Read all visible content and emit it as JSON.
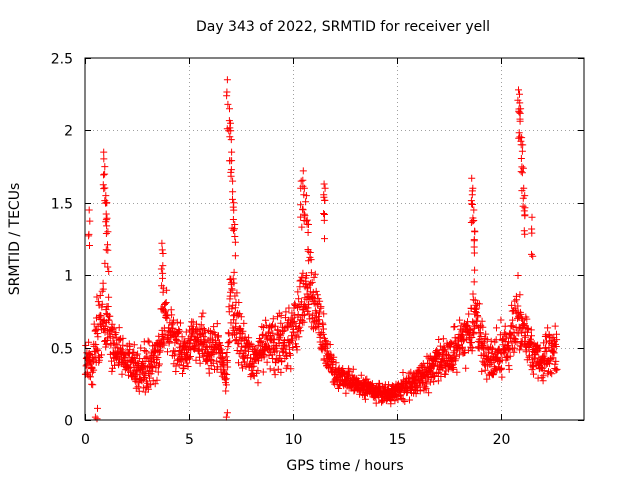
{
  "chart_data": {
    "type": "scatter",
    "title": "Day 343 of 2022, SRMTID for receiver yell",
    "xlabel": "GPS time / hours",
    "ylabel": "SRMTID / TECUs",
    "xlim": [
      0,
      24
    ],
    "ylim": [
      0,
      2.5
    ],
    "grid": true,
    "marker": "+",
    "marker_color": "#ff0000",
    "x_ticks": [
      0,
      5,
      10,
      15,
      20
    ],
    "x_tick_labels": [
      "0",
      "5",
      "10",
      "15",
      "20"
    ],
    "y_ticks": [
      0,
      0.5,
      1,
      1.5,
      2,
      2.5
    ],
    "y_tick_labels": [
      "0",
      "0.5",
      "1",
      "1.5",
      "2",
      "2.5"
    ],
    "envelope": {
      "x": [
        0.0,
        0.3,
        0.6,
        0.9,
        1.2,
        1.5,
        2.0,
        2.5,
        3.0,
        3.5,
        3.8,
        4.2,
        4.6,
        5.0,
        5.5,
        6.0,
        6.4,
        6.8,
        7.0,
        7.3,
        7.6,
        8.0,
        8.5,
        9.0,
        9.5,
        10.0,
        10.4,
        10.8,
        11.2,
        11.6,
        12.0,
        12.5,
        13.0,
        13.5,
        14.0,
        14.5,
        15.0,
        15.5,
        16.0,
        16.5,
        17.0,
        17.5,
        18.0,
        18.5,
        18.8,
        19.2,
        19.6,
        20.0,
        20.4,
        20.8,
        21.2,
        21.6,
        22.0,
        22.3,
        22.7
      ],
      "mid": [
        0.45,
        0.35,
        0.6,
        0.75,
        0.65,
        0.5,
        0.4,
        0.35,
        0.35,
        0.45,
        0.7,
        0.6,
        0.45,
        0.5,
        0.55,
        0.5,
        0.45,
        0.3,
        0.8,
        0.7,
        0.5,
        0.4,
        0.45,
        0.5,
        0.55,
        0.6,
        0.8,
        0.85,
        0.75,
        0.5,
        0.3,
        0.28,
        0.25,
        0.22,
        0.2,
        0.18,
        0.2,
        0.22,
        0.28,
        0.32,
        0.4,
        0.45,
        0.55,
        0.6,
        0.75,
        0.45,
        0.4,
        0.45,
        0.5,
        0.7,
        0.6,
        0.45,
        0.4,
        0.45,
        0.5
      ],
      "spread": [
        0.25,
        0.25,
        0.3,
        0.35,
        0.3,
        0.2,
        0.18,
        0.18,
        0.2,
        0.2,
        0.3,
        0.25,
        0.2,
        0.2,
        0.22,
        0.2,
        0.2,
        0.2,
        0.4,
        0.35,
        0.25,
        0.2,
        0.2,
        0.25,
        0.25,
        0.3,
        0.35,
        0.35,
        0.35,
        0.2,
        0.12,
        0.1,
        0.1,
        0.08,
        0.08,
        0.08,
        0.1,
        0.1,
        0.12,
        0.14,
        0.15,
        0.18,
        0.2,
        0.2,
        0.25,
        0.2,
        0.2,
        0.2,
        0.22,
        0.3,
        0.25,
        0.2,
        0.18,
        0.2,
        0.2
      ]
    },
    "spikes": [
      {
        "x": 0.2,
        "y": 1.45
      },
      {
        "x": 0.9,
        "y": 1.85
      },
      {
        "x": 0.95,
        "y": 1.75
      },
      {
        "x": 1.0,
        "y": 1.55
      },
      {
        "x": 1.05,
        "y": 1.5
      },
      {
        "x": 1.1,
        "y": 1.3
      },
      {
        "x": 3.7,
        "y": 1.22
      },
      {
        "x": 3.75,
        "y": 1.15
      },
      {
        "x": 6.85,
        "y": 2.35
      },
      {
        "x": 6.95,
        "y": 2.15
      },
      {
        "x": 7.0,
        "y": 2.05
      },
      {
        "x": 7.05,
        "y": 1.85
      },
      {
        "x": 7.1,
        "y": 1.65
      },
      {
        "x": 7.15,
        "y": 1.5
      },
      {
        "x": 7.2,
        "y": 1.35
      },
      {
        "x": 10.4,
        "y": 1.65
      },
      {
        "x": 10.5,
        "y": 1.72
      },
      {
        "x": 10.55,
        "y": 1.6
      },
      {
        "x": 10.65,
        "y": 1.55
      },
      {
        "x": 10.75,
        "y": 1.35
      },
      {
        "x": 11.5,
        "y": 1.63
      },
      {
        "x": 11.55,
        "y": 1.6
      },
      {
        "x": 18.6,
        "y": 1.67
      },
      {
        "x": 18.65,
        "y": 1.6
      },
      {
        "x": 18.7,
        "y": 1.45
      },
      {
        "x": 18.75,
        "y": 1.3
      },
      {
        "x": 20.85,
        "y": 2.28
      },
      {
        "x": 20.9,
        "y": 2.25
      },
      {
        "x": 20.95,
        "y": 2.15
      },
      {
        "x": 21.0,
        "y": 1.95
      },
      {
        "x": 21.05,
        "y": 1.9
      },
      {
        "x": 21.1,
        "y": 1.6
      },
      {
        "x": 21.15,
        "y": 1.55
      },
      {
        "x": 21.5,
        "y": 1.4
      },
      {
        "x": 6.8,
        "y": 0.02
      },
      {
        "x": 6.85,
        "y": 0.05
      },
      {
        "x": 0.5,
        "y": 0.02
      },
      {
        "x": 0.6,
        "y": 0.08
      }
    ]
  }
}
